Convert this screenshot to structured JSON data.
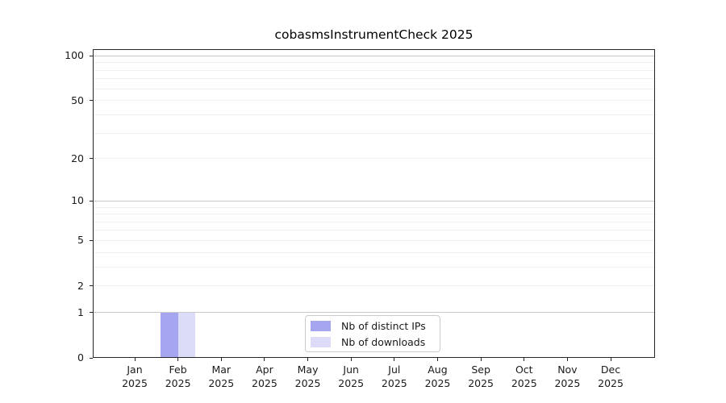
{
  "title": "cobasmsInstrumentCheck 2025",
  "colors": {
    "distinct_ips": "#a6a6f0",
    "downloads": "#dcdcf8",
    "grid_minor": "#f0f0f0",
    "grid_major": "#c9c9c9",
    "axis": "#262626",
    "legend_border": "#cccccc"
  },
  "legend": {
    "items": [
      {
        "label": "Nb of distinct IPs",
        "color_key": "distinct_ips"
      },
      {
        "label": "Nb of downloads",
        "color_key": "downloads"
      }
    ]
  },
  "y_axis": {
    "tick_values": [
      0,
      1,
      2,
      5,
      10,
      20,
      50,
      100
    ],
    "grid_values": [
      1,
      2,
      3,
      4,
      5,
      6,
      7,
      8,
      9,
      10,
      20,
      30,
      40,
      50,
      60,
      70,
      80,
      90,
      100
    ],
    "major_grid_values": [
      1,
      10,
      100
    ],
    "scale": "log10(1+x)"
  },
  "x_axis": {
    "month_labels": [
      "Jan",
      "Feb",
      "Mar",
      "Apr",
      "May",
      "Jun",
      "Jul",
      "Aug",
      "Sep",
      "Oct",
      "Nov",
      "Dec"
    ],
    "year": "2025"
  },
  "chart_data": {
    "type": "bar",
    "title": "cobasmsInstrumentCheck 2025",
    "categories": [
      "Jan 2025",
      "Feb 2025",
      "Mar 2025",
      "Apr 2025",
      "May 2025",
      "Jun 2025",
      "Jul 2025",
      "Aug 2025",
      "Sep 2025",
      "Oct 2025",
      "Nov 2025",
      "Dec 2025"
    ],
    "series": [
      {
        "name": "Nb of distinct IPs",
        "values": [
          0,
          1,
          0,
          0,
          0,
          0,
          0,
          0,
          0,
          0,
          0,
          0
        ]
      },
      {
        "name": "Nb of downloads",
        "values": [
          0,
          1,
          0,
          0,
          0,
          0,
          0,
          0,
          0,
          0,
          0,
          0
        ]
      }
    ],
    "xlabel": "",
    "ylabel": "",
    "y_ticks": [
      0,
      1,
      2,
      5,
      10,
      20,
      50,
      100
    ],
    "y_scale": "log10(1+x)",
    "ylim": [
      0,
      110
    ],
    "grid": "horizontal",
    "legend_position": "inside bottom-center"
  }
}
